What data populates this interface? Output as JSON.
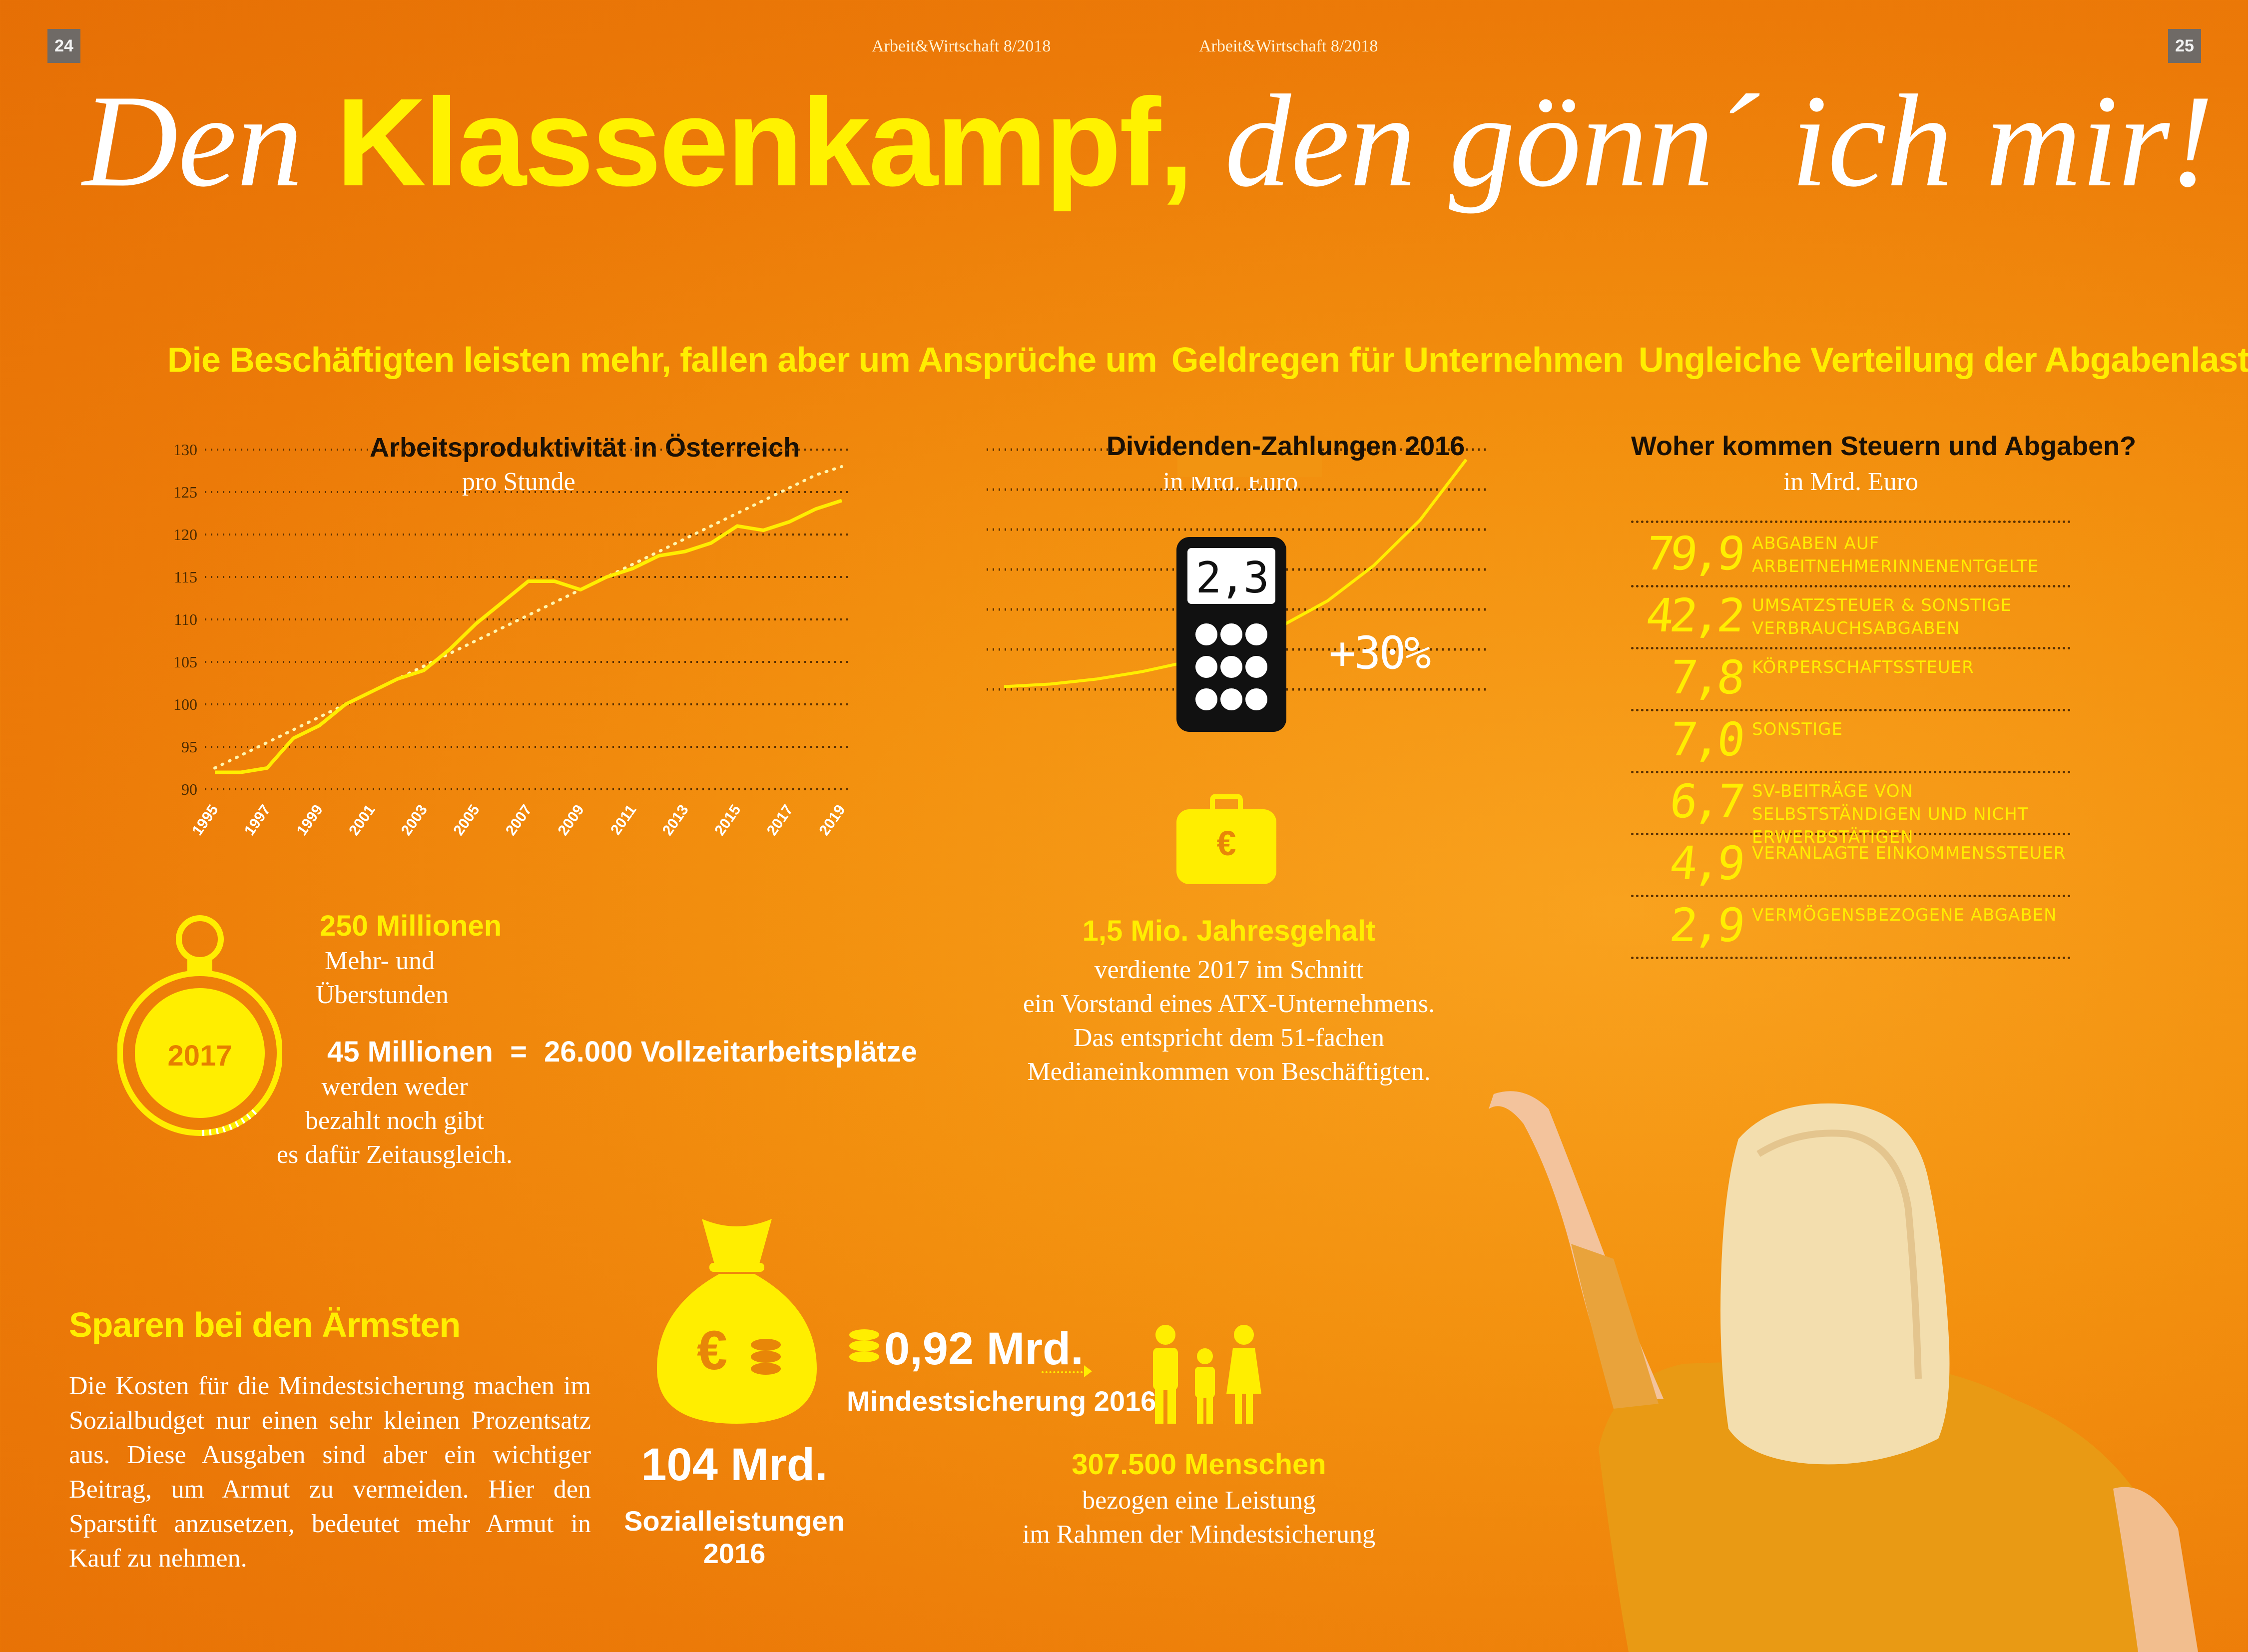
{
  "header": {
    "page_left": "24",
    "page_right": "25",
    "running_head_left": "Arbeit&Wirtschaft 8/2018",
    "running_head_right": "Arbeit&Wirtschaft 8/2018"
  },
  "headline": {
    "part1": "Den ",
    "highlight": "Klassenkampf,",
    "part2": " den gönn´ ich mir!"
  },
  "productivity": {
    "section_title": "Die Beschäftigten leisten mehr, fallen aber um Ansprüche um",
    "chart_title": "Arbeitsproduktivität in Österreich",
    "chart_subtitle": "pro Stunde",
    "colors": {
      "line": "#ffee00",
      "trend": "#fff6b0",
      "axis_text": "#4a2a00",
      "grid": "#5a3000"
    }
  },
  "chart_data": [
    {
      "type": "line",
      "title": "Arbeitsproductivität in Österreich",
      "subtitle": "pro Stunde",
      "ylim": [
        90,
        130
      ],
      "yticks": [
        90,
        95,
        100,
        105,
        110,
        115,
        120,
        125,
        130
      ],
      "xticks": [
        "1995",
        "1997",
        "1999",
        "2001",
        "2003",
        "2005",
        "2007",
        "2009",
        "2011",
        "2013",
        "2015",
        "2017",
        "2019"
      ],
      "x": [
        1995,
        1996,
        1997,
        1998,
        1999,
        2000,
        2001,
        2002,
        2003,
        2004,
        2005,
        2006,
        2007,
        2008,
        2009,
        2010,
        2011,
        2012,
        2013,
        2014,
        2015,
        2016,
        2017,
        2018,
        2019
      ],
      "series": [
        {
          "values": [
            92,
            92,
            92.5,
            96,
            97.5,
            100,
            101.5,
            103,
            104,
            106.5,
            109.5,
            112,
            114.5,
            114.5,
            113.5,
            115,
            116,
            117.5,
            118,
            119,
            121,
            120.5,
            121.5,
            123,
            124
          ]
        },
        {
          "style": "dotted",
          "values": [
            92.5,
            94,
            95.5,
            97,
            98.5,
            100,
            101.5,
            103,
            104.5,
            106,
            107.5,
            109,
            110.5,
            112,
            113.5,
            115,
            116.5,
            118,
            119.5,
            121,
            122.5,
            124,
            125.5,
            127,
            128
          ]
        }
      ]
    },
    {
      "type": "line",
      "title": "Dividenden-Zahlungen 2016",
      "subtitle": "in Mrd. Euro",
      "highlight_value": "2,3",
      "annotation": "+30%",
      "series": [
        {
          "values": [
            0.5,
            0.55,
            0.65,
            0.8,
            1.0,
            1.3,
            1.7,
            2.2,
            2.9,
            3.8,
            5.0
          ]
        }
      ]
    }
  ],
  "overtime": {
    "year": "2017",
    "amount1": "250 Millionen",
    "text1": "Mehr- und",
    "text2": "Überstunden",
    "amount2": "45 Millionen",
    "equals": "=",
    "equivalent": "26.000 Vollzeitarbeitsplätze",
    "note_line1": "werden weder",
    "note_line2": "bezahlt noch gibt",
    "note_line3": "es dafür Zeitausgleich."
  },
  "dividends": {
    "section_title": "Geldregen für Unternehmen",
    "chart_title": "Dividenden-Zahlungen 2016",
    "chart_subtitle": "in Mrd. Euro",
    "calculator_value": "2,3",
    "growth": "+30%"
  },
  "salary": {
    "currency_symbol": "€",
    "highlight": "1,5 Mio. Jahresgehalt",
    "line1": "verdiente 2017 im Schnitt",
    "line2": "ein Vorstand eines ATX-Unternehmens.",
    "line3": "Das entspricht dem 51-fachen",
    "line4": "Medianeinkommen von Beschäftigten."
  },
  "distribution": {
    "section_title": "Ungleiche Verteilung der Abgabenlast",
    "chart_title": "Woher kommen Steuern und Abgaben?",
    "chart_subtitle": "in Mrd. Euro",
    "rows": [
      {
        "value": "79,9",
        "label": "Abgaben auf ArbeitnehmerInnenentgelte"
      },
      {
        "value": "42,2",
        "label": "Umsatzsteuer & sonstige Verbrauchsabgaben"
      },
      {
        "value": "7,8",
        "label": "Körperschaftssteuer"
      },
      {
        "value": "7,0",
        "label": "Sonstige"
      },
      {
        "value": "6,7",
        "label": "SV-Beiträge von Selbstständigen und nicht Erwerbstätigen"
      },
      {
        "value": "4,9",
        "label": "Veranlagte Einkommenssteuer"
      },
      {
        "value": "2,9",
        "label": "Vermögensbezogene Abgaben"
      }
    ]
  },
  "savings": {
    "section_title": "Sparen bei den Ärmsten",
    "body": "Die Kosten für die Mindestsicherung machen im Sozialbudget nur einen sehr kleinen Prozentsatz aus. Diese Ausgaben sind aber ein wichtiger Beitrag, um Armut zu vermeiden. Hier den Sparstift anzusetzen, bedeutet mehr Armut in Kauf zu nehmen.",
    "bag_symbol": "€",
    "social_amount": "104 Mrd.",
    "social_label": "Sozialleistungen 2016",
    "min_amount": "0,92 Mrd.",
    "min_label": "Mindestsicherung 2016",
    "people_amount": "307.500 Menschen",
    "people_line1": "bezogen eine Leistung",
    "people_line2": "im Rahmen der Mindestsicherung"
  }
}
